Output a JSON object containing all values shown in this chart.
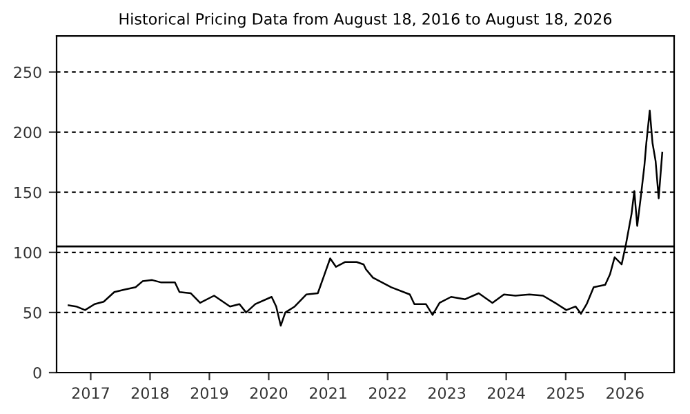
{
  "chart_data": {
    "type": "line",
    "title": "Historical Pricing Data from August 18, 2016 to August 18, 2026",
    "x": [
      "2016-08-18",
      "2016-10-04",
      "2016-11-27",
      "2017-01-25",
      "2017-03-22",
      "2017-05-26",
      "2017-07-27",
      "2017-10-04",
      "2017-11-16",
      "2018-01-14",
      "2018-03-11",
      "2018-06-03",
      "2018-07-01",
      "2018-09-09",
      "2018-11-05",
      "2019-01-30",
      "2019-05-08",
      "2019-07-05",
      "2019-08-15",
      "2019-10-11",
      "2020-01-19",
      "2020-02-16",
      "2020-03-15",
      "2020-04-12",
      "2020-06-09",
      "2020-08-19",
      "2020-10-29",
      "2020-12-10",
      "2021-01-13",
      "2021-02-18",
      "2021-04-16",
      "2021-06-25",
      "2021-08-07",
      "2021-08-21",
      "2021-10-03",
      "2022-01-24",
      "2022-05-18",
      "2022-06-15",
      "2022-08-25",
      "2022-10-05",
      "2022-11-17",
      "2023-01-27",
      "2023-04-23",
      "2023-07-16",
      "2023-10-08",
      "2023-12-18",
      "2024-02-27",
      "2024-05-22",
      "2024-08-14",
      "2024-11-09",
      "2025-01-05",
      "2025-03-03",
      "2025-04-05",
      "2025-05-10",
      "2025-06-22",
      "2025-09-01",
      "2025-10-01",
      "2025-10-29",
      "2025-12-11",
      "2026-01-07",
      "2026-02-10",
      "2026-02-27",
      "2026-03-17",
      "2026-04-07",
      "2026-04-30",
      "2026-05-12",
      "2026-06-02",
      "2026-06-19",
      "2026-07-08",
      "2026-07-27",
      "2026-08-18"
    ],
    "series": [
      {
        "color": "#000000",
        "values": [
          56,
          55,
          52,
          57,
          59,
          67,
          69,
          71,
          76,
          77,
          75,
          75,
          67,
          66,
          58,
          64,
          55,
          57,
          50,
          57,
          63,
          55,
          39,
          50,
          55,
          65,
          66,
          82,
          95,
          88,
          92,
          92,
          90,
          86,
          79,
          71,
          65,
          57,
          57,
          48,
          58,
          63,
          61,
          66,
          58,
          65,
          64,
          65,
          64,
          57,
          52,
          55,
          49,
          57,
          71,
          73,
          82,
          96,
          90,
          107,
          132,
          151,
          122,
          145,
          172,
          191,
          218,
          191,
          176,
          145,
          183
        ]
      }
    ],
    "xlim": [
      "2016-06-05",
      "2026-10-30"
    ],
    "xticks": [
      {
        "value": "2017-01-01",
        "label": "2017"
      },
      {
        "value": "2018-01-01",
        "label": "2018"
      },
      {
        "value": "2019-01-01",
        "label": "2019"
      },
      {
        "value": "2020-01-01",
        "label": "2020"
      },
      {
        "value": "2021-01-01",
        "label": "2021"
      },
      {
        "value": "2022-01-01",
        "label": "2022"
      },
      {
        "value": "2023-01-01",
        "label": "2023"
      },
      {
        "value": "2024-01-01",
        "label": "2024"
      },
      {
        "value": "2025-01-01",
        "label": "2025"
      },
      {
        "value": "2026-01-01",
        "label": "2026"
      }
    ],
    "ylim": [
      0,
      280
    ],
    "yticks": [
      0,
      50,
      100,
      150,
      200,
      250
    ],
    "ref_lines": [
      {
        "axis": "y",
        "value": 105,
        "color": "#000000",
        "line_style": "solid"
      }
    ],
    "grid": "y",
    "legend": false,
    "marker": "none",
    "line_style": "solid"
  }
}
